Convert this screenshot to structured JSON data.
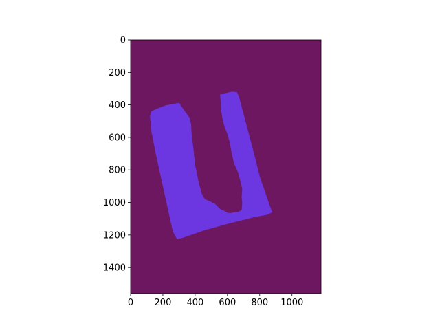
{
  "chart_data": {
    "type": "heatmap",
    "title": "",
    "xlabel": "",
    "ylabel": "",
    "xlim": [
      0,
      1180
    ],
    "ylim": [
      1560,
      0
    ],
    "x_ticks": [
      0,
      200,
      400,
      600,
      800,
      1000
    ],
    "y_ticks": [
      0,
      200,
      400,
      600,
      800,
      1000,
      1200,
      1400
    ],
    "x_tick_labels": [
      "0",
      "200",
      "400",
      "600",
      "800",
      "1000"
    ],
    "y_tick_labels": [
      "0",
      "200",
      "400",
      "600",
      "800",
      "1000",
      "1200",
      "1400"
    ],
    "grid": false,
    "legend": "none",
    "colors": {
      "background_value": "#6d1761",
      "mask_value": "#6c37e0"
    },
    "mask_region_outline": [
      [
        128,
        440
      ],
      [
        160,
        425
      ],
      [
        220,
        402
      ],
      [
        300,
        388
      ],
      [
        322,
        420
      ],
      [
        365,
        478
      ],
      [
        375,
        520
      ],
      [
        378,
        575
      ],
      [
        390,
        680
      ],
      [
        400,
        770
      ],
      [
        420,
        868
      ],
      [
        440,
        945
      ],
      [
        460,
        980
      ],
      [
        490,
        992
      ],
      [
        525,
        1010
      ],
      [
        555,
        1040
      ],
      [
        580,
        1052
      ],
      [
        598,
        1062
      ],
      [
        618,
        1066
      ],
      [
        640,
        1060
      ],
      [
        668,
        1058
      ],
      [
        688,
        1046
      ],
      [
        692,
        1005
      ],
      [
        688,
        965
      ],
      [
        692,
        918
      ],
      [
        668,
        820
      ],
      [
        640,
        758
      ],
      [
        620,
        665
      ],
      [
        612,
        622
      ],
      [
        600,
        580
      ],
      [
        580,
        528
      ],
      [
        570,
        490
      ],
      [
        562,
        440
      ],
      [
        555,
        335
      ],
      [
        630,
        318
      ],
      [
        660,
        322
      ],
      [
        672,
        350
      ],
      [
        690,
        420
      ],
      [
        725,
        550
      ],
      [
        765,
        700
      ],
      [
        800,
        840
      ],
      [
        835,
        940
      ],
      [
        862,
        1020
      ],
      [
        878,
        1060
      ],
      [
        848,
        1075
      ],
      [
        760,
        1092
      ],
      [
        600,
        1132
      ],
      [
        460,
        1170
      ],
      [
        330,
        1215
      ],
      [
        288,
        1226
      ],
      [
        262,
        1180
      ],
      [
        235,
        1060
      ],
      [
        200,
        900
      ],
      [
        160,
        720
      ],
      [
        130,
        570
      ],
      [
        120,
        470
      ]
    ]
  }
}
